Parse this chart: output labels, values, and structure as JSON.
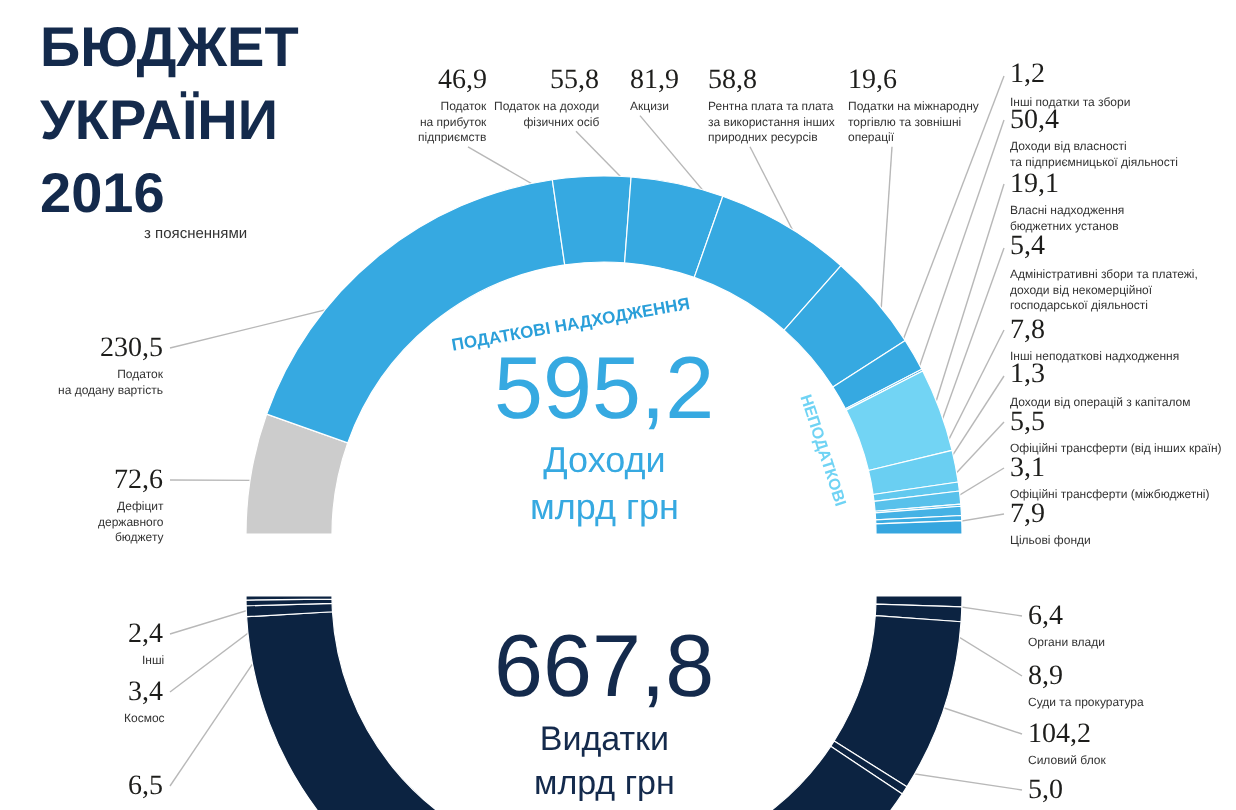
{
  "chart_data": [
    {
      "type": "donut",
      "title": "БЮДЖЕТ\nУКРАЇНИ\n2016",
      "subtitle": "з поясненнями",
      "categories": [
        "Дефіцит\nдержавного\nбюджету",
        "Податок\nна додану вартість",
        "Податок\nна прибуток\nпідприємств",
        "Податок на доходи\nфізичних осіб",
        "Акцизи",
        "Рентна плата та плата\nза використання інших\nприродних ресурсів",
        "Податки на міжнародну\nторгівлю та зовнішні\nоперації",
        "Інші податки та збори",
        "Доходи від власності\nта підприємницької діяльності",
        "Власні надходження\nбюджетних установ",
        "Адміністративні збори та платежі,\nдоходи від некомерційної\nгосподарської діяльності",
        "Інші неподаткові надходження",
        "Доходи від операцій з капіталом",
        "Офіційні трансферти (від інших країн)",
        "Офіційні трансферти (міжбюджетні)",
        "Цільові фонди"
      ],
      "values": [
        72.6,
        230.5,
        46.9,
        55.8,
        81.9,
        58.8,
        19.6,
        1.2,
        50.4,
        19.1,
        5.4,
        7.8,
        1.3,
        5.5,
        3.1,
        7.9
      ],
      "value_labels": [
        "72,6",
        "230,5",
        "46,9",
        "55,8",
        "81,9",
        "58,8",
        "19,6",
        "1,2",
        "50,4",
        "19,1",
        "5,4",
        "7,8",
        "1,3",
        "5,5",
        "3,1",
        "7,9"
      ],
      "colors": [
        "#cccccc",
        "#36a9e1",
        "#36a9e1",
        "#36a9e1",
        "#36a9e1",
        "#36a9e1",
        "#36a9e1",
        "#36a9e1",
        "#72d4f4",
        "#6acff2",
        "#62c9ef",
        "#58c1eb",
        "#4eb9e8",
        "#45b2e5",
        "#3dace2",
        "#36a6df"
      ],
      "annotations": [
        "595,2",
        "Доходи\nмлрд грн",
        "ПОДАТКОВІ НАДХОДЖЕННЯ",
        "НЕПОДАТКОВІ"
      ]
    },
    {
      "type": "donut",
      "categories": [
        "Органи влади",
        "Суди та прокуратура",
        "Силовий блок",
        null,
        null,
        null,
        "Космос",
        "Інші"
      ],
      "values": [
        6.4,
        8.9,
        104.2,
        5.0,
        531.0,
        6.5,
        3.4,
        2.4
      ],
      "value_labels": [
        "6,4",
        "8,9",
        "104,2",
        "5,0",
        null,
        "6,5",
        "3,4",
        "2,4"
      ],
      "colors": [
        "#0c2341",
        "#0c2341",
        "#0c2341",
        "#0c2341",
        "#0c2341",
        "#0c2341",
        "#0c2341",
        "#0c2341"
      ],
      "annotations": [
        "667,8",
        "Видатки\nмлрд грн"
      ]
    }
  ]
}
